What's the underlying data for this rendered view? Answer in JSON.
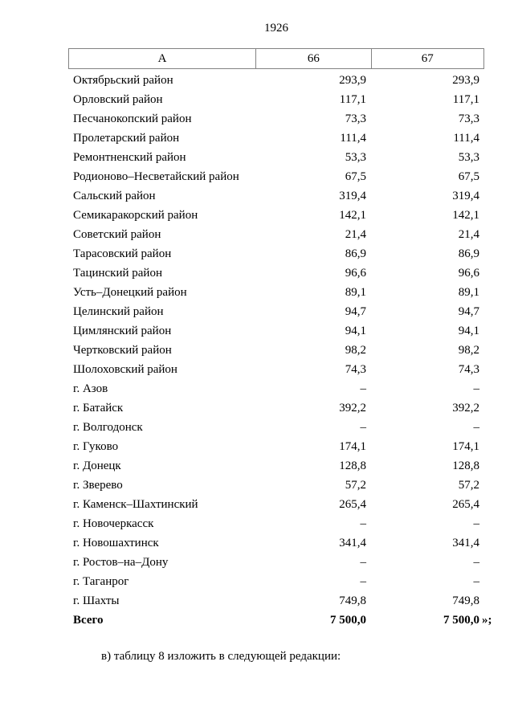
{
  "page": {
    "page_number": "1926",
    "footer_note": "в) таблицу 8 изложить в следующей редакции:"
  },
  "table": {
    "columns": [
      "А",
      "66",
      "67"
    ],
    "rows": [
      {
        "name": "Октябрьский район",
        "v66": "293,9",
        "v67": "293,9"
      },
      {
        "name": "Орловский район",
        "v66": "117,1",
        "v67": "117,1"
      },
      {
        "name": "Песчанокопский район",
        "v66": "73,3",
        "v67": "73,3"
      },
      {
        "name": "Пролетарский район",
        "v66": "111,4",
        "v67": "111,4"
      },
      {
        "name": "Ремонтненский район",
        "v66": "53,3",
        "v67": "53,3"
      },
      {
        "name": "Родионово–Несветайский район",
        "v66": "67,5",
        "v67": "67,5"
      },
      {
        "name": "Сальский район",
        "v66": "319,4",
        "v67": "319,4"
      },
      {
        "name": "Семикаракорский район",
        "v66": "142,1",
        "v67": "142,1"
      },
      {
        "name": "Советский район",
        "v66": "21,4",
        "v67": "21,4"
      },
      {
        "name": "Тарасовский район",
        "v66": "86,9",
        "v67": "86,9"
      },
      {
        "name": "Тацинский район",
        "v66": "96,6",
        "v67": "96,6"
      },
      {
        "name": "Усть–Донецкий район",
        "v66": "89,1",
        "v67": "89,1"
      },
      {
        "name": "Целинский район",
        "v66": "94,7",
        "v67": "94,7"
      },
      {
        "name": "Цимлянский район",
        "v66": "94,1",
        "v67": "94,1"
      },
      {
        "name": "Чертковский район",
        "v66": "98,2",
        "v67": "98,2"
      },
      {
        "name": "Шолоховский район",
        "v66": "74,3",
        "v67": "74,3"
      },
      {
        "name": "г. Азов",
        "v66": "–",
        "v67": "–"
      },
      {
        "name": "г. Батайск",
        "v66": "392,2",
        "v67": "392,2"
      },
      {
        "name": "г. Волгодонск",
        "v66": "–",
        "v67": "–"
      },
      {
        "name": "г. Гуково",
        "v66": "174,1",
        "v67": "174,1"
      },
      {
        "name": "г. Донецк",
        "v66": "128,8",
        "v67": "128,8"
      },
      {
        "name": "г. Зверево",
        "v66": "57,2",
        "v67": "57,2"
      },
      {
        "name": "г. Каменск–Шахтинский",
        "v66": "265,4",
        "v67": "265,4"
      },
      {
        "name": "г. Новочеркасск",
        "v66": "–",
        "v67": "–"
      },
      {
        "name": "г. Новошахтинск",
        "v66": "341,4",
        "v67": "341,4"
      },
      {
        "name": "г. Ростов–на–Дону",
        "v66": "–",
        "v67": "–"
      },
      {
        "name": "г. Таганрог",
        "v66": "–",
        "v67": "–"
      },
      {
        "name": "г. Шахты",
        "v66": "749,8",
        "v67": "749,8"
      },
      {
        "name": "Всего",
        "v66": "7 500,0",
        "v67": "7 500,0",
        "suffix": "»;",
        "bold": true
      }
    ]
  }
}
